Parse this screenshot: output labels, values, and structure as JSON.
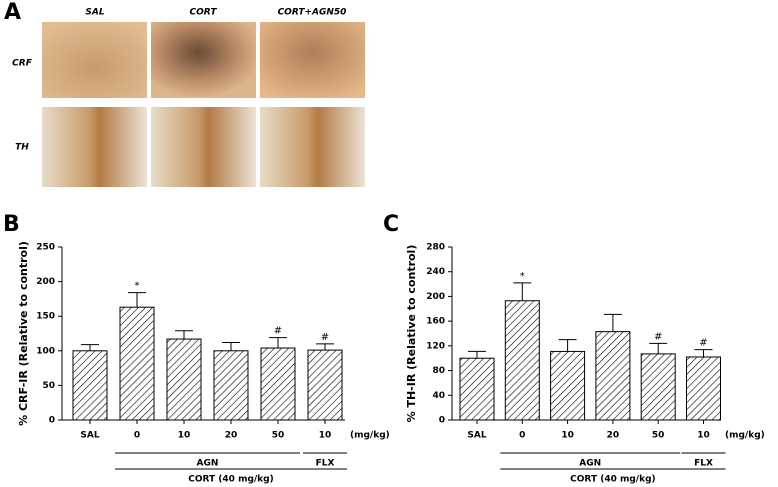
{
  "panel_a": {
    "label": "A",
    "columns": [
      "SAL",
      "CORT",
      "CORT+AGN50"
    ],
    "rows": [
      "CRF",
      "TH"
    ]
  },
  "chart_data": [
    {
      "type": "bar",
      "panel": "B",
      "y_label": "% CRF-IR (Relative to control)",
      "categories": [
        "SAL",
        "0",
        "10",
        "20",
        "50",
        "10"
      ],
      "values": [
        100,
        163,
        117,
        100,
        104,
        101
      ],
      "errors": [
        9,
        21,
        12,
        12,
        15,
        9
      ],
      "annotations": [
        null,
        "*",
        null,
        null,
        "#",
        "#"
      ],
      "x_unit": "(mg/kg)",
      "groups": [
        "AGN",
        "FLX"
      ],
      "group_label": "CORT (40 mg/kg)",
      "ylim": [
        0,
        250
      ],
      "yticks": [
        0,
        50,
        100,
        150,
        200,
        250
      ]
    },
    {
      "type": "bar",
      "panel": "C",
      "y_label": "% TH-IR (Relative to control)",
      "categories": [
        "SAL",
        "0",
        "10",
        "20",
        "50",
        "10"
      ],
      "values": [
        100,
        193,
        111,
        143,
        107,
        102
      ],
      "errors": [
        11,
        29,
        19,
        28,
        17,
        12
      ],
      "annotations": [
        null,
        "*",
        null,
        null,
        "#",
        "#"
      ],
      "x_unit": "(mg/kg)",
      "groups": [
        "AGN",
        "FLX"
      ],
      "group_label": "CORT (40 mg/kg)",
      "ylim": [
        0,
        280
      ],
      "yticks": [
        0,
        40,
        80,
        120,
        160,
        200,
        240,
        280
      ]
    }
  ]
}
